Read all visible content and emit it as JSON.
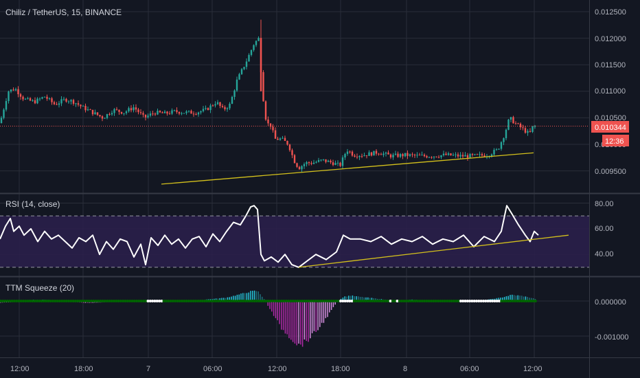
{
  "header": {
    "symbol_line": "Chiliz / TetherUS, 15, BINANCE"
  },
  "price_axis": {
    "labels": [
      "0.012500",
      "0.012000",
      "0.011500",
      "0.011000",
      "0.010500",
      "0.010000",
      "0.009500"
    ],
    "current_price": "0.010344",
    "countdown": "12:36"
  },
  "rsi": {
    "title": "RSI (14, close)",
    "labels": [
      "80.00",
      "60.00",
      "40.00"
    ],
    "upper_band": 70,
    "lower_band": 30
  },
  "ttm": {
    "title": "TTM Squeeze (20)",
    "labels": [
      "0.000000",
      "-0.001000"
    ]
  },
  "time_axis": {
    "labels": [
      "12:00",
      "18:00",
      "7",
      "06:00",
      "12:00",
      "18:00",
      "8",
      "06:00",
      "12:00"
    ]
  },
  "colors": {
    "background": "#131722",
    "grid": "#2a2e39",
    "bull": "#26a69a",
    "bear": "#ef5350",
    "rsi_line": "#ffffff",
    "rsi_fill": "#2a1f4a",
    "trendline": "#d4c11c",
    "squeeze_on": "#006400",
    "squeeze_off": "#ffffff"
  },
  "chart_data": [
    {
      "type": "candlestick",
      "title": "Chiliz / TetherUS, 15, BINANCE",
      "ylim": [
        0.0092,
        0.0127
      ],
      "close_path": [
        [
          0,
          0.0104
        ],
        [
          12,
          0.011
        ],
        [
          22,
          0.01105
        ],
        [
          35,
          0.01085
        ],
        [
          50,
          0.0108
        ],
        [
          65,
          0.0109
        ],
        [
          80,
          0.01075
        ],
        [
          95,
          0.01085
        ],
        [
          108,
          0.0108
        ],
        [
          120,
          0.0107
        ],
        [
          135,
          0.0106
        ],
        [
          150,
          0.0105
        ],
        [
          165,
          0.01065
        ],
        [
          180,
          0.0106
        ],
        [
          195,
          0.0107
        ],
        [
          210,
          0.0105
        ],
        [
          225,
          0.0106
        ],
        [
          240,
          0.01058
        ],
        [
          255,
          0.01062
        ],
        [
          270,
          0.0106
        ],
        [
          285,
          0.0106
        ],
        [
          300,
          0.01065
        ],
        [
          315,
          0.0108
        ],
        [
          325,
          0.01065
        ],
        [
          335,
          0.01075
        ],
        [
          345,
          0.0112
        ],
        [
          360,
          0.0116
        ],
        [
          370,
          0.0119
        ],
        [
          377,
          0.012
        ],
        [
          382,
          0.011
        ],
        [
          388,
          0.0104
        ],
        [
          395,
          0.01035
        ],
        [
          400,
          0.0101
        ],
        [
          410,
          0.0101
        ],
        [
          420,
          0.01
        ],
        [
          428,
          0.0097
        ],
        [
          435,
          0.00955
        ],
        [
          445,
          0.00965
        ],
        [
          455,
          0.00965
        ],
        [
          470,
          0.0097
        ],
        [
          485,
          0.00965
        ],
        [
          495,
          0.0096
        ],
        [
          505,
          0.0099
        ],
        [
          515,
          0.0098
        ],
        [
          530,
          0.0098
        ],
        [
          550,
          0.00985
        ],
        [
          570,
          0.00978
        ],
        [
          590,
          0.0098
        ],
        [
          610,
          0.00978
        ],
        [
          630,
          0.00978
        ],
        [
          650,
          0.0098
        ],
        [
          670,
          0.00978
        ],
        [
          690,
          0.00978
        ],
        [
          710,
          0.0098
        ],
        [
          725,
          0.0099
        ],
        [
          735,
          0.0102
        ],
        [
          742,
          0.0105
        ],
        [
          750,
          0.0104
        ],
        [
          760,
          0.0103
        ],
        [
          770,
          0.0102
        ],
        [
          775,
          0.01025
        ],
        [
          781,
          0.01034
        ]
      ],
      "trendline": [
        [
          0.00925,
          235
        ],
        [
          0.00984,
          777
        ]
      ]
    },
    {
      "type": "line",
      "title": "RSI (14, close)",
      "ylim": [
        25,
        85
      ],
      "x": [
        0,
        8,
        15,
        20,
        28,
        35,
        45,
        55,
        65,
        75,
        85,
        95,
        105,
        115,
        125,
        135,
        145,
        155,
        165,
        175,
        185,
        195,
        205,
        212,
        220,
        230,
        240,
        250,
        260,
        270,
        280,
        290,
        300,
        310,
        320,
        330,
        340,
        350,
        358,
        365,
        370,
        375,
        380,
        385,
        395,
        405,
        415,
        425,
        435,
        445,
        460,
        475,
        490,
        500,
        510,
        525,
        540,
        555,
        570,
        585,
        600,
        615,
        630,
        645,
        660,
        675,
        690,
        705,
        720,
        730,
        738,
        745,
        755,
        765,
        772,
        778,
        784
      ],
      "values": [
        52,
        62,
        68,
        58,
        62,
        55,
        60,
        50,
        58,
        52,
        55,
        50,
        45,
        53,
        50,
        55,
        40,
        50,
        44,
        52,
        50,
        38,
        48,
        32,
        53,
        47,
        55,
        48,
        52,
        45,
        52,
        54,
        46,
        56,
        50,
        58,
        65,
        63,
        70,
        77,
        78,
        75,
        40,
        35,
        38,
        34,
        40,
        32,
        30,
        34,
        40,
        36,
        42,
        55,
        52,
        52,
        50,
        54,
        48,
        52,
        50,
        54,
        48,
        52,
        50,
        55,
        46,
        54,
        50,
        58,
        78,
        72,
        63,
        55,
        50,
        58,
        55
      ],
      "trendline": [
        [
          30,
          435
        ],
        [
          55,
          828
        ]
      ],
      "bands": [
        70,
        30
      ]
    },
    {
      "type": "bar",
      "title": "TTM Squeeze (20)",
      "ylim": [
        -0.0014,
        0.0004
      ],
      "momentum_keyframes": [
        [
          0,
          -5e-05
        ],
        [
          20,
          -3e-05
        ],
        [
          40,
          3e-05
        ],
        [
          60,
          4e-05
        ],
        [
          80,
          3e-05
        ],
        [
          100,
          -2e-05
        ],
        [
          125,
          -6e-05
        ],
        [
          150,
          -4e-05
        ],
        [
          175,
          0.0
        ],
        [
          200,
          2e-05
        ],
        [
          230,
          3e-05
        ],
        [
          260,
          1e-05
        ],
        [
          290,
          3e-05
        ],
        [
          310,
          6e-05
        ],
        [
          330,
          0.0001
        ],
        [
          350,
          0.0002
        ],
        [
          365,
          0.00028
        ],
        [
          375,
          0.0003
        ],
        [
          385,
          5e-05
        ],
        [
          395,
          -0.0003
        ],
        [
          410,
          -0.0008
        ],
        [
          425,
          -0.0011
        ],
        [
          435,
          -0.0013
        ],
        [
          445,
          -0.0012
        ],
        [
          460,
          -0.0009
        ],
        [
          475,
          -0.0005
        ],
        [
          490,
          -5e-05
        ],
        [
          500,
          0.00012
        ],
        [
          510,
          0.00016
        ],
        [
          525,
          0.00012
        ],
        [
          545,
          8e-05
        ],
        [
          565,
          3e-05
        ],
        [
          580,
          1e-05
        ],
        [
          600,
          4e-05
        ],
        [
          620,
          2e-05
        ],
        [
          645,
          -1e-05
        ],
        [
          665,
          2e-05
        ],
        [
          690,
          2e-05
        ],
        [
          710,
          4e-05
        ],
        [
          730,
          0.0001
        ],
        [
          745,
          0.00018
        ],
        [
          760,
          0.00015
        ],
        [
          772,
          0.0001
        ],
        [
          782,
          5e-05
        ]
      ],
      "squeeze_off_ranges": [
        [
          215,
          237
        ],
        [
          493,
          515
        ],
        [
          568,
          571
        ],
        [
          577,
          580
        ],
        [
          670,
          730
        ]
      ]
    }
  ]
}
